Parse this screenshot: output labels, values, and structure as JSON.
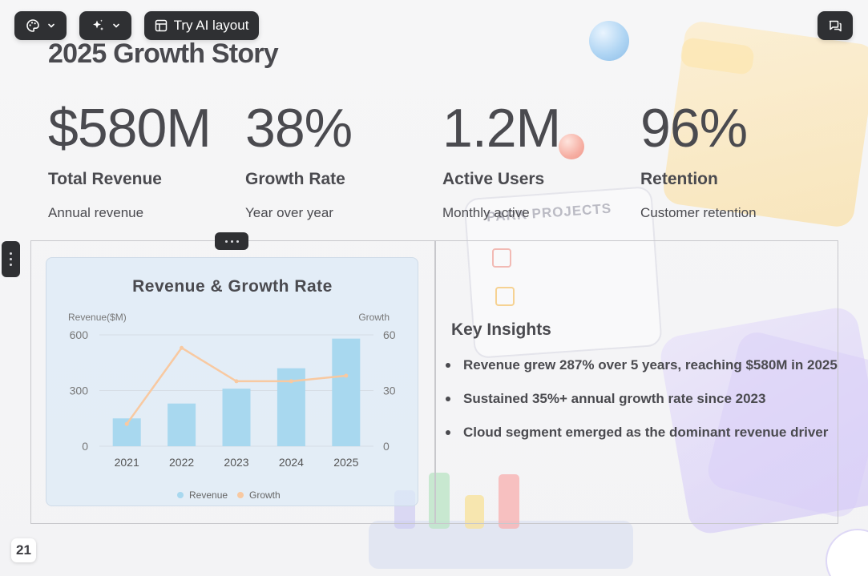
{
  "toolbar": {
    "theme_button": {
      "icon": "palette-icon"
    },
    "ai_button": {
      "icon": "sparkles-icon"
    },
    "ai_layout_label": "Try AI layout",
    "comments_button": {
      "icon": "comments-icon"
    }
  },
  "slide": {
    "title": "2025 Growth Story",
    "stats": [
      {
        "value": "$580M",
        "label": "Total Revenue",
        "sub": "Annual revenue"
      },
      {
        "value": "38%",
        "label": "Growth Rate",
        "sub": "Year over year"
      },
      {
        "value": "1.2M",
        "label": "Active Users",
        "sub": "Monthly active"
      },
      {
        "value": "96%",
        "label": "Retention",
        "sub": "Customer retention"
      }
    ],
    "insights": {
      "title": "Key Insights",
      "items": [
        "Revenue grew 287% over 5 years, reaching $580M in 2025",
        "Sustained 35%+ annual growth rate since 2023",
        "Cloud segment emerged as the dominant revenue driver"
      ]
    },
    "background_text": "PARK PROJECTS",
    "page_number": "21"
  },
  "chart_data": {
    "type": "bar",
    "title": "Revenue & Growth Rate",
    "categories": [
      "2021",
      "2022",
      "2023",
      "2024",
      "2025"
    ],
    "series": [
      {
        "name": "Revenue",
        "type": "bar",
        "axis": "left",
        "color": "#a8d8ef",
        "values": [
          150,
          230,
          310,
          420,
          580
        ]
      },
      {
        "name": "Growth",
        "type": "line",
        "axis": "right",
        "color": "#f8c9a1",
        "values": [
          12,
          53,
          35,
          35,
          38
        ]
      }
    ],
    "ylabel": "Revenue($M)",
    "y2label": "Growth",
    "ylim": [
      0,
      600
    ],
    "y2lim": [
      0,
      60
    ],
    "yticks": [
      "0",
      "300",
      "600"
    ],
    "y2ticks": [
      "0",
      "30",
      "60"
    ],
    "grid": true,
    "legend": "bottom"
  }
}
